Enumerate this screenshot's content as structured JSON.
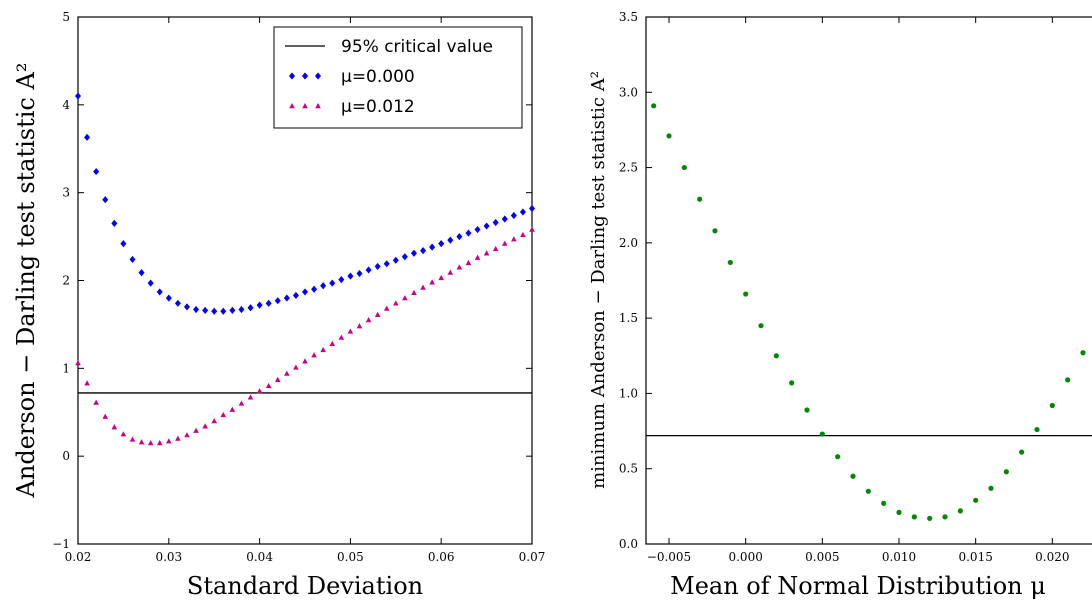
{
  "chart_data": [
    {
      "type": "scatter",
      "xlabel": "Standard Deviation",
      "ylabel": "Anderson − Darling test statistic A²",
      "xlim": [
        0.02,
        0.07
      ],
      "ylim": [
        -1,
        5
      ],
      "xticks": [
        "0.02",
        "0.03",
        "0.04",
        "0.05",
        "0.06",
        "0.07"
      ],
      "yticks": [
        "−1",
        "0",
        "1",
        "2",
        "3",
        "4",
        "5"
      ],
      "legend": {
        "position": "top-right",
        "entries": [
          "95% critical value",
          "μ=0.000",
          "μ=0.012"
        ]
      },
      "critical_value": 0.72,
      "colors": {
        "mu0": "#0000ff",
        "mu012": "#cc0088",
        "critical": "#000000"
      },
      "series": [
        {
          "name": "μ=0.000",
          "marker": "diamond",
          "x": [
            0.02,
            0.021,
            0.022,
            0.023,
            0.024,
            0.025,
            0.026,
            0.027,
            0.028,
            0.029,
            0.03,
            0.031,
            0.032,
            0.033,
            0.034,
            0.035,
            0.036,
            0.037,
            0.038,
            0.039,
            0.04,
            0.041,
            0.042,
            0.043,
            0.044,
            0.045,
            0.046,
            0.047,
            0.048,
            0.049,
            0.05,
            0.051,
            0.052,
            0.053,
            0.054,
            0.055,
            0.056,
            0.057,
            0.058,
            0.059,
            0.06,
            0.061,
            0.062,
            0.063,
            0.064,
            0.065,
            0.066,
            0.067,
            0.068,
            0.069,
            0.07
          ],
          "y": [
            4.1,
            3.63,
            3.24,
            2.92,
            2.65,
            2.42,
            2.24,
            2.09,
            1.97,
            1.87,
            1.8,
            1.74,
            1.7,
            1.67,
            1.66,
            1.65,
            1.65,
            1.66,
            1.67,
            1.69,
            1.72,
            1.74,
            1.77,
            1.8,
            1.83,
            1.87,
            1.9,
            1.94,
            1.97,
            2.01,
            2.05,
            2.08,
            2.12,
            2.16,
            2.19,
            2.23,
            2.27,
            2.31,
            2.34,
            2.38,
            2.42,
            2.46,
            2.5,
            2.54,
            2.58,
            2.62,
            2.66,
            2.7,
            2.74,
            2.78,
            2.82
          ]
        },
        {
          "name": "μ=0.012",
          "marker": "triangle",
          "x": [
            0.02,
            0.021,
            0.022,
            0.023,
            0.024,
            0.025,
            0.026,
            0.027,
            0.028,
            0.029,
            0.03,
            0.031,
            0.032,
            0.033,
            0.034,
            0.035,
            0.036,
            0.037,
            0.038,
            0.039,
            0.04,
            0.041,
            0.042,
            0.043,
            0.044,
            0.045,
            0.046,
            0.047,
            0.048,
            0.049,
            0.05,
            0.051,
            0.052,
            0.053,
            0.054,
            0.055,
            0.056,
            0.057,
            0.058,
            0.059,
            0.06,
            0.061,
            0.062,
            0.063,
            0.064,
            0.065,
            0.066,
            0.067,
            0.068,
            0.069,
            0.07
          ],
          "y": [
            1.06,
            0.83,
            0.61,
            0.45,
            0.33,
            0.25,
            0.19,
            0.16,
            0.15,
            0.15,
            0.17,
            0.2,
            0.24,
            0.29,
            0.34,
            0.4,
            0.47,
            0.53,
            0.6,
            0.67,
            0.74,
            0.8,
            0.87,
            0.94,
            1.01,
            1.08,
            1.15,
            1.21,
            1.28,
            1.35,
            1.42,
            1.48,
            1.55,
            1.61,
            1.68,
            1.74,
            1.8,
            1.86,
            1.92,
            1.98,
            2.03,
            2.09,
            2.15,
            2.2,
            2.26,
            2.31,
            2.36,
            2.42,
            2.47,
            2.52,
            2.58
          ]
        }
      ]
    },
    {
      "type": "scatter",
      "xlabel": "Mean of Normal Distribution μ",
      "ylabel": "minimum Anderson − Darling test statistic A²",
      "xlim": [
        -0.0065,
        0.0235
      ],
      "ylim": [
        0.0,
        3.5
      ],
      "xticks": [
        "−0.005",
        "0.000",
        "0.005",
        "0.010",
        "0.015",
        "0.020"
      ],
      "yticks": [
        "0.0",
        "0.5",
        "1.0",
        "1.5",
        "2.0",
        "2.5",
        "3.0",
        "3.5"
      ],
      "critical_value": 0.72,
      "colors": {
        "points": "#008800",
        "critical": "#000000"
      },
      "series": [
        {
          "marker": "circle",
          "x": [
            -0.006,
            -0.005,
            -0.004,
            -0.003,
            -0.002,
            -0.001,
            0.0,
            0.001,
            0.002,
            0.003,
            0.004,
            0.005,
            0.006,
            0.007,
            0.008,
            0.009,
            0.01,
            0.011,
            0.012,
            0.013,
            0.014,
            0.015,
            0.016,
            0.017,
            0.018,
            0.019,
            0.02,
            0.021,
            0.022,
            0.023
          ],
          "y": [
            2.91,
            2.71,
            2.5,
            2.29,
            2.08,
            1.87,
            1.66,
            1.45,
            1.25,
            1.07,
            0.89,
            0.73,
            0.58,
            0.45,
            0.35,
            0.27,
            0.21,
            0.18,
            0.17,
            0.18,
            0.22,
            0.29,
            0.37,
            0.48,
            0.61,
            0.76,
            0.92,
            1.09,
            1.27,
            1.46
          ]
        }
      ]
    }
  ]
}
